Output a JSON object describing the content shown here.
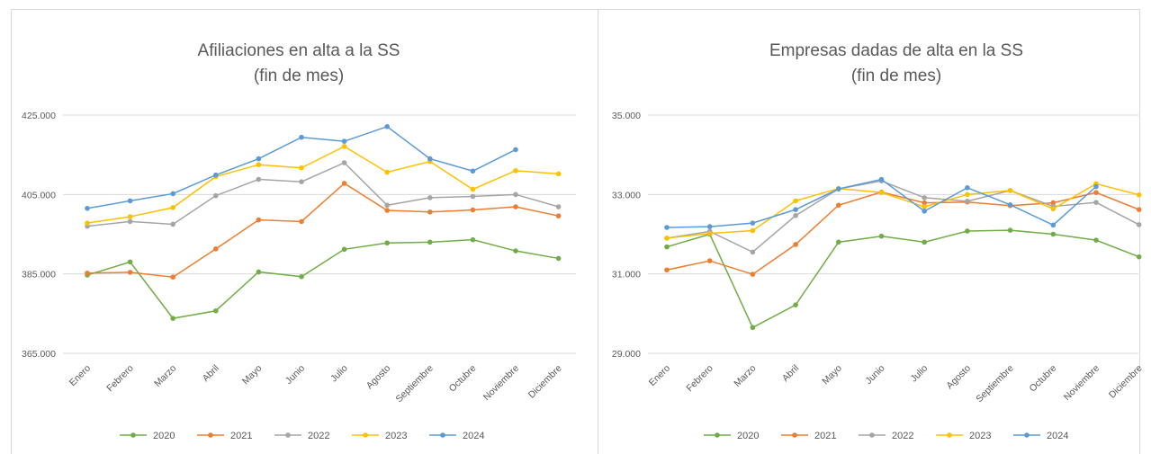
{
  "chart_data": [
    {
      "type": "line",
      "title": "Afiliaciones en alta a la SS",
      "subtitle": "(fin de mes)",
      "categories": [
        "Enero",
        "Febrero",
        "Marzo",
        "Abril",
        "Mayo",
        "Junio",
        "Julio",
        "Agosto",
        "Septiembre",
        "Octubre",
        "Noviembre",
        "Diciembre"
      ],
      "yticks": [
        "365.000",
        "385.000",
        "405.000",
        "425.000"
      ],
      "ylim": [
        365000,
        425000
      ],
      "grid": true,
      "legend_position": "bottom",
      "series": [
        {
          "name": "2020",
          "color": "#70ad47",
          "values": [
            384700,
            388000,
            373800,
            375700,
            385500,
            384300,
            391200,
            392800,
            393000,
            393600,
            390800,
            388900
          ]
        },
        {
          "name": "2021",
          "color": "#ed7d31",
          "values": [
            385200,
            385400,
            384200,
            391300,
            398600,
            398200,
            407800,
            401000,
            400600,
            401100,
            401900,
            399600
          ]
        },
        {
          "name": "2022",
          "color": "#a5a5a5",
          "values": [
            397000,
            398200,
            397500,
            404700,
            408800,
            408200,
            413000,
            402300,
            404200,
            404500,
            405000,
            401900
          ]
        },
        {
          "name": "2023",
          "color": "#ffc000",
          "values": [
            397800,
            399400,
            401700,
            409500,
            412500,
            411700,
            417100,
            410600,
            413300,
            406300,
            411000,
            410200
          ]
        },
        {
          "name": "2024",
          "color": "#5b9bd5",
          "values": [
            401500,
            403400,
            405200,
            409900,
            414000,
            419400,
            418400,
            422100,
            414000,
            410900,
            416300,
            null
          ]
        }
      ]
    },
    {
      "type": "line",
      "title": "Empresas dadas de alta en la SS",
      "subtitle": "(fin de mes)",
      "categories": [
        "Enero",
        "Febrero",
        "Marzo",
        "Abril",
        "Mayo",
        "Junio",
        "Julio",
        "Agosto",
        "Septiembre",
        "Octubre",
        "Noviembre",
        "Diciembre"
      ],
      "yticks": [
        "29.000",
        "31.000",
        "33.000",
        "35.000"
      ],
      "ylim": [
        29000,
        35000
      ],
      "grid": true,
      "legend_position": "bottom",
      "series": [
        {
          "name": "2020",
          "color": "#70ad47",
          "values": [
            31680,
            32000,
            29650,
            30220,
            31800,
            31950,
            31800,
            32080,
            32100,
            32000,
            31850,
            31430
          ]
        },
        {
          "name": "2021",
          "color": "#ed7d31",
          "values": [
            31100,
            31330,
            30990,
            31740,
            32730,
            33060,
            32790,
            32810,
            32720,
            32790,
            33050,
            32620
          ]
        },
        {
          "name": "2022",
          "color": "#a5a5a5",
          "values": [
            31900,
            32070,
            31550,
            32470,
            33140,
            33340,
            32920,
            32830,
            33100,
            32700,
            32800,
            32240
          ]
        },
        {
          "name": "2023",
          "color": "#ffc000",
          "values": [
            31900,
            32020,
            32090,
            32840,
            33150,
            33050,
            32690,
            33000,
            33100,
            32640,
            33270,
            32990
          ]
        },
        {
          "name": "2024",
          "color": "#5b9bd5",
          "values": [
            32170,
            32190,
            32280,
            32620,
            33140,
            33380,
            32580,
            33170,
            32740,
            32230,
            33200,
            null
          ]
        }
      ]
    }
  ]
}
